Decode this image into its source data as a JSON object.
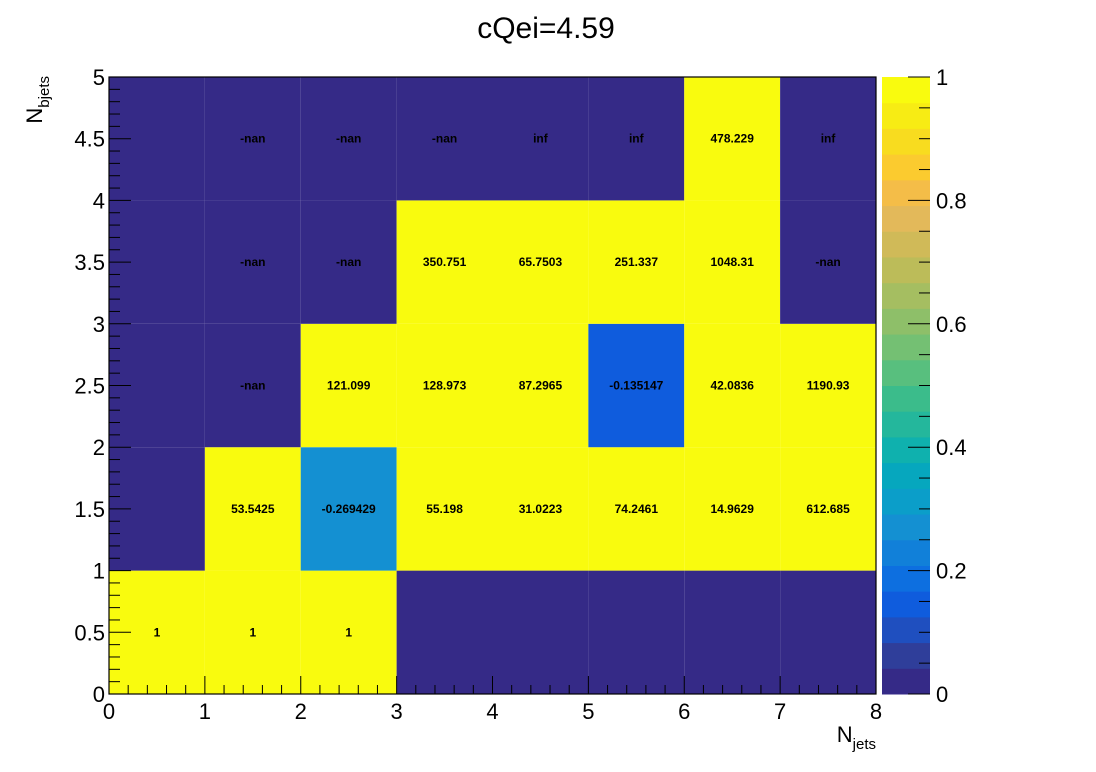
{
  "chart_data": {
    "type": "heatmap",
    "title": "cQei=4.59",
    "xlabel": {
      "main": "N",
      "sub": "jets"
    },
    "ylabel": {
      "main": "N",
      "sub": "bjets"
    },
    "xlim": [
      0,
      8
    ],
    "ylim": [
      0,
      5
    ],
    "x_ticks": [
      "0",
      "1",
      "2",
      "3",
      "4",
      "5",
      "6",
      "7",
      "8"
    ],
    "y_ticks": [
      "0",
      "0.5",
      "1",
      "1.5",
      "2",
      "2.5",
      "3",
      "3.5",
      "4",
      "4.5",
      "5"
    ],
    "zlim": [
      0,
      1
    ],
    "z_ticks": [
      "0",
      "0.2",
      "0.4",
      "0.6",
      "0.8",
      "1"
    ],
    "palette": [
      "#352a87",
      "#2f3e9a",
      "#1f4fbf",
      "#0f5cdd",
      "#0d6fe0",
      "#1180d9",
      "#1490d2",
      "#0b9ec9",
      "#06a7be",
      "#0fb1ae",
      "#24b79c",
      "#3bbc8b",
      "#58bf7e",
      "#74c073",
      "#8ebf69",
      "#a5be61",
      "#bcbc59",
      "#d0ba58",
      "#e3b95a",
      "#f4bd48",
      "#fbcb2f",
      "#f8dc1f",
      "#f7ec14",
      "#f9fb0e"
    ],
    "rows": [
      {
        "y_range": [
          0,
          1
        ],
        "cells": [
          {
            "value": 1,
            "label": "1"
          },
          {
            "value": 1,
            "label": "1"
          },
          {
            "value": 1,
            "label": "1"
          },
          {
            "value": 0,
            "label": ""
          },
          {
            "value": 0,
            "label": ""
          },
          {
            "value": 0,
            "label": ""
          },
          {
            "value": 0,
            "label": ""
          },
          {
            "value": 0,
            "label": ""
          }
        ]
      },
      {
        "y_range": [
          1,
          2
        ],
        "cells": [
          {
            "value": 0.02,
            "label": ""
          },
          {
            "value": 1,
            "label": "53.5425"
          },
          {
            "value": 0.27,
            "label": "-0.269429"
          },
          {
            "value": 1,
            "label": "55.198"
          },
          {
            "value": 1,
            "label": "31.0223"
          },
          {
            "value": 1,
            "label": "74.2461"
          },
          {
            "value": 1,
            "label": "14.9629"
          },
          {
            "value": 1,
            "label": "612.685"
          }
        ]
      },
      {
        "y_range": [
          2,
          3
        ],
        "cells": [
          {
            "value": 0.02,
            "label": ""
          },
          {
            "value": 0,
            "label": "-nan"
          },
          {
            "value": 1,
            "label": "121.099"
          },
          {
            "value": 1,
            "label": "128.973"
          },
          {
            "value": 1,
            "label": "87.2965"
          },
          {
            "value": 0.14,
            "label": "-0.135147"
          },
          {
            "value": 1,
            "label": "42.0836"
          },
          {
            "value": 1,
            "label": "1190.93"
          }
        ]
      },
      {
        "y_range": [
          3,
          4
        ],
        "cells": [
          {
            "value": 0.02,
            "label": ""
          },
          {
            "value": 0,
            "label": "-nan"
          },
          {
            "value": 0,
            "label": "-nan"
          },
          {
            "value": 1,
            "label": "350.751"
          },
          {
            "value": 1,
            "label": "65.7503"
          },
          {
            "value": 1,
            "label": "251.337"
          },
          {
            "value": 1,
            "label": "1048.31"
          },
          {
            "value": 0,
            "label": "-nan"
          }
        ]
      },
      {
        "y_range": [
          4,
          5
        ],
        "cells": [
          {
            "value": 0.02,
            "label": ""
          },
          {
            "value": 0,
            "label": "-nan"
          },
          {
            "value": 0,
            "label": "-nan"
          },
          {
            "value": 0,
            "label": "-nan"
          },
          {
            "value": 0,
            "label": "inf"
          },
          {
            "value": 0,
            "label": "inf"
          },
          {
            "value": 1,
            "label": "478.229"
          },
          {
            "value": 0,
            "label": "inf"
          }
        ]
      }
    ]
  }
}
